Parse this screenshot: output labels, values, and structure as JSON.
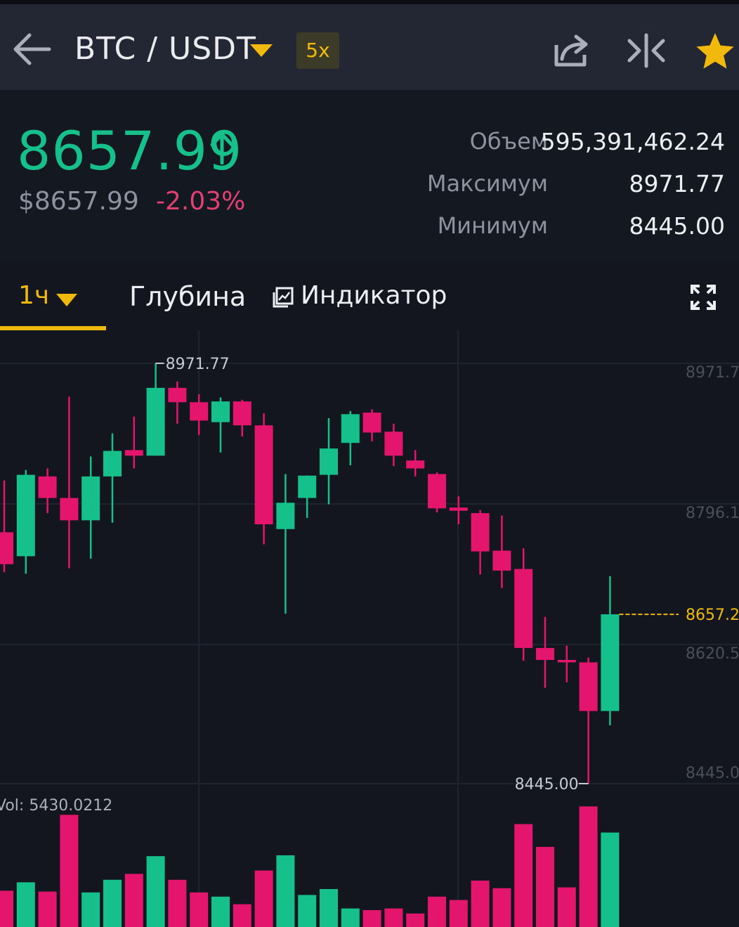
{
  "header": {
    "pair": "BTC / USDT",
    "leverage": "5x"
  },
  "ticker": {
    "last_price": "8657.99",
    "usd_price": "$8657.99",
    "change": "-2.03%",
    "volume_label": "Объем",
    "volume_value": "595,391,462.24",
    "high_label": "Максимум",
    "high_value": "8971.77",
    "low_label": "Минимум",
    "low_value": "8445.00"
  },
  "tabs": {
    "interval": "1ч",
    "depth": "Глубина",
    "indicator": "Индикатор"
  },
  "colors": {
    "up": "#16c08a",
    "down": "#e4156c",
    "accent": "#f0b90b"
  },
  "chart_data": {
    "type": "candlestick",
    "y_axis_labels": [
      "8971.7",
      "8796.1",
      "8620.5",
      "8445.0"
    ],
    "current_price_label": "8657.2",
    "max_marker": "8971.77",
    "min_marker": "8445.00",
    "volume_label": "Vol: 5430.0212",
    "ylim": [
      8445.0,
      8971.7
    ],
    "candles": [
      {
        "open": 8760,
        "close": 8720,
        "high": 8825,
        "low": 8710
      },
      {
        "open": 8730,
        "close": 8832,
        "high": 8838,
        "low": 8708
      },
      {
        "open": 8830,
        "close": 8803,
        "high": 8840,
        "low": 8784
      },
      {
        "open": 8803,
        "close": 8775,
        "high": 8930,
        "low": 8715
      },
      {
        "open": 8775,
        "close": 8830,
        "high": 8855,
        "low": 8727
      },
      {
        "open": 8830,
        "close": 8862,
        "high": 8884,
        "low": 8772
      },
      {
        "open": 8863,
        "close": 8856,
        "high": 8905,
        "low": 8840
      },
      {
        "open": 8856,
        "close": 8941,
        "high": 8971.77,
        "low": 8856
      },
      {
        "open": 8941,
        "close": 8923,
        "high": 8949,
        "low": 8896
      },
      {
        "open": 8923,
        "close": 8900,
        "high": 8933,
        "low": 8882
      },
      {
        "open": 8898,
        "close": 8924,
        "high": 8929,
        "low": 8860
      },
      {
        "open": 8924,
        "close": 8894,
        "high": 8926,
        "low": 8880
      },
      {
        "open": 8894,
        "close": 8770,
        "high": 8909,
        "low": 8745
      },
      {
        "open": 8764,
        "close": 8797,
        "high": 8833,
        "low": 8658
      },
      {
        "open": 8803,
        "close": 8831,
        "high": 8831,
        "low": 8778
      },
      {
        "open": 8832,
        "close": 8865,
        "high": 8903,
        "low": 8795
      },
      {
        "open": 8872,
        "close": 8908,
        "high": 8912,
        "low": 8844
      },
      {
        "open": 8910,
        "close": 8885,
        "high": 8914,
        "low": 8874
      },
      {
        "open": 8886,
        "close": 8856,
        "high": 8896,
        "low": 8843
      },
      {
        "open": 8850,
        "close": 8840,
        "high": 8863,
        "low": 8830
      },
      {
        "open": 8833,
        "close": 8790,
        "high": 8835,
        "low": 8785
      },
      {
        "open": 8791,
        "close": 8787,
        "high": 8805,
        "low": 8770
      },
      {
        "open": 8784,
        "close": 8736,
        "high": 8788,
        "low": 8707
      },
      {
        "open": 8737,
        "close": 8712,
        "high": 8781,
        "low": 8690
      },
      {
        "open": 8714,
        "close": 8615,
        "high": 8740,
        "low": 8599
      },
      {
        "open": 8615,
        "close": 8600,
        "high": 8654,
        "low": 8565
      },
      {
        "open": 8600,
        "close": 8597,
        "high": 8618,
        "low": 8572
      },
      {
        "open": 8597,
        "close": 8536,
        "high": 8603,
        "low": 8445.0
      },
      {
        "open": 8536,
        "close": 8657.2,
        "high": 8705,
        "low": 8518
      }
    ],
    "volumes": [
      {
        "value": 43,
        "dir": "down"
      },
      {
        "value": 53,
        "dir": "up"
      },
      {
        "value": 42,
        "dir": "down"
      },
      {
        "value": 133,
        "dir": "down"
      },
      {
        "value": 41,
        "dir": "up"
      },
      {
        "value": 56,
        "dir": "up"
      },
      {
        "value": 63,
        "dir": "down"
      },
      {
        "value": 84,
        "dir": "up"
      },
      {
        "value": 56,
        "dir": "down"
      },
      {
        "value": 41,
        "dir": "down"
      },
      {
        "value": 36,
        "dir": "up"
      },
      {
        "value": 27,
        "dir": "down"
      },
      {
        "value": 67,
        "dir": "down"
      },
      {
        "value": 85,
        "dir": "up"
      },
      {
        "value": 38,
        "dir": "up"
      },
      {
        "value": 45,
        "dir": "up"
      },
      {
        "value": 22,
        "dir": "up"
      },
      {
        "value": 20,
        "dir": "down"
      },
      {
        "value": 22,
        "dir": "down"
      },
      {
        "value": 16,
        "dir": "down"
      },
      {
        "value": 36,
        "dir": "down"
      },
      {
        "value": 32,
        "dir": "down"
      },
      {
        "value": 55,
        "dir": "down"
      },
      {
        "value": 46,
        "dir": "down"
      },
      {
        "value": 122,
        "dir": "down"
      },
      {
        "value": 95,
        "dir": "down"
      },
      {
        "value": 47,
        "dir": "down"
      },
      {
        "value": 143,
        "dir": "down"
      },
      {
        "value": 112,
        "dir": "up"
      }
    ]
  }
}
